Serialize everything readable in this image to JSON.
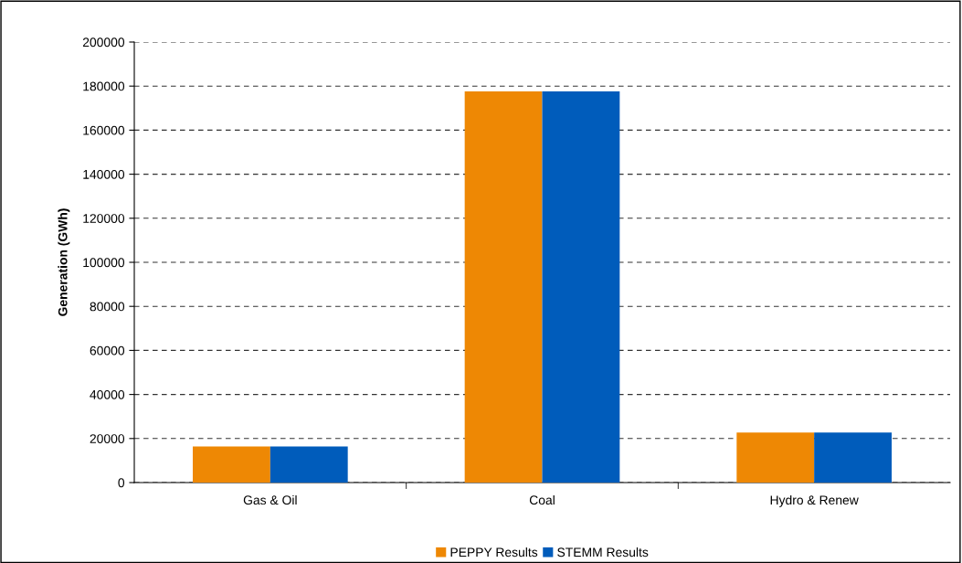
{
  "chart_data": {
    "type": "bar",
    "ylabel": "Generation (GWh)",
    "categories": [
      "Gas & Oil",
      "Coal",
      "Hydro & Renew"
    ],
    "series": [
      {
        "name": "PEPPY Results",
        "color": "#ee8804",
        "values": [
          16400,
          177600,
          22700
        ]
      },
      {
        "name": "STEMM Results",
        "color": "#005cbb",
        "values": [
          16400,
          177600,
          22700
        ]
      }
    ],
    "ylim": [
      0,
      200000
    ],
    "yticks": [
      0,
      20000,
      40000,
      60000,
      80000,
      100000,
      120000,
      140000,
      160000,
      180000,
      200000
    ],
    "grid": "y",
    "legend": "bottom"
  }
}
